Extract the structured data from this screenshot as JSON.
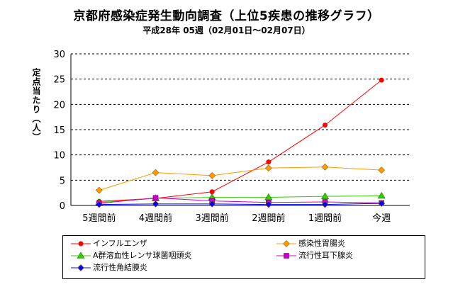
{
  "chart_data": {
    "type": "line",
    "title": "京都府感染症発生動向調査（上位5疾患の推移グラフ）",
    "subtitle": "平成28年 05週（02月01日〜02月07日）",
    "ylabel": "定点当たり（人）",
    "xlabel": "",
    "categories": [
      "5週間前",
      "4週間前",
      "3週間前",
      "2週間前",
      "1週間前",
      "今週"
    ],
    "ylim": [
      0,
      30
    ],
    "yticks": [
      0,
      5,
      10,
      15,
      20,
      25,
      30
    ],
    "grid": "horizontal-dashed",
    "legend_position": "bottom",
    "series": [
      {
        "name": "インフルエンザ",
        "color": "#ff0000",
        "marker": "circle",
        "values": [
          0.8,
          1.4,
          2.7,
          8.6,
          15.9,
          24.8
        ]
      },
      {
        "name": "感染性胃腸炎",
        "color": "#ff9900",
        "marker": "diamond",
        "values": [
          3.0,
          6.5,
          5.9,
          7.4,
          7.6,
          7.0
        ]
      },
      {
        "name": "A群溶血性レンサ球菌咽頭炎",
        "color": "#33cc00",
        "marker": "triangle",
        "values": [
          0.6,
          1.4,
          1.6,
          1.6,
          1.8,
          1.9
        ]
      },
      {
        "name": "流行性耳下腺炎",
        "color": "#cc00cc",
        "marker": "square",
        "values": [
          0.4,
          1.5,
          0.9,
          0.6,
          0.7,
          0.5
        ]
      },
      {
        "name": "流行性角結膜炎",
        "color": "#0000ff",
        "marker": "diamond",
        "values": [
          0.2,
          0.3,
          0.3,
          0.2,
          0.2,
          0.4
        ]
      }
    ]
  }
}
